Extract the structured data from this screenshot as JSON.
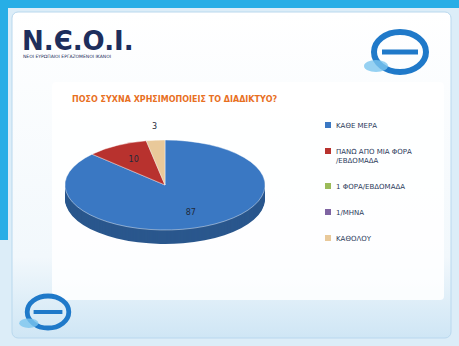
{
  "chart_data": {
    "type": "pie",
    "title": "ΠΟΣΟ ΣΥΧΝΑ ΧΡΗΣΙΜΟΠΟΙΕΙΣ ΤΟ ΔΙΑΔΙΚΤΥΟ?",
    "annotations": [
      "N.Є.O.I.",
      "ΝΕΟΙ ΕΥΡΩΠΑΙΟΙ ΕΡΓΑΖΟΜΕΝΟΙ ΙΚΑΝΟΙ"
    ],
    "categories": [
      "ΚΑΘΕ ΜΕΡΑ",
      "ΠΑΝΩ ΑΠΟ ΜΙΑ ΦΟΡΑ /ΕΒΔΟΜΑΔΑ",
      "1 ΦΟΡΑ/ΕΒΔΟΜΑΔΑ",
      "1/ΜΗΝΑ",
      "ΚΑΘΟΛΟΥ"
    ],
    "values": [
      87,
      10,
      0,
      0,
      3
    ],
    "colors": [
      "#3a78c3",
      "#b8322e",
      "#9bbb59",
      "#7f64a2",
      "#e9c99a"
    ],
    "data_labels": true,
    "legend": "right"
  }
}
